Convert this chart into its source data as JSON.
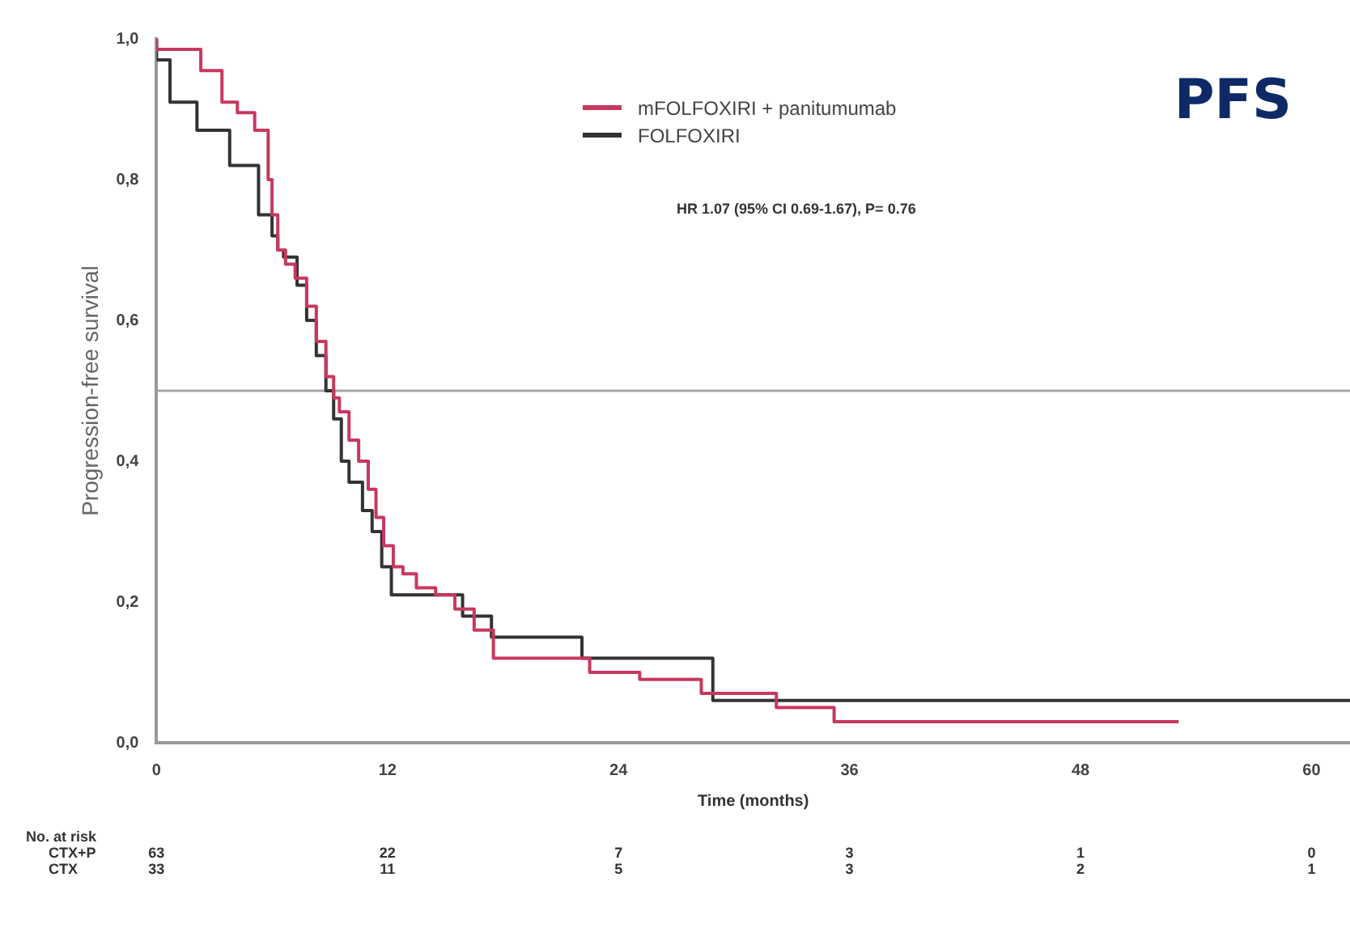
{
  "chart_data": {
    "type": "step",
    "title": "PFS",
    "xlabel": "Time (months)",
    "ylabel": "Progression-free survival",
    "xlim": [
      0,
      62
    ],
    "xticks": [
      0,
      12,
      24,
      36,
      48,
      60
    ],
    "ylim": [
      0,
      1
    ],
    "yticks": [
      {
        "value": 0,
        "label": "0,0"
      },
      {
        "value": 0.2,
        "label": "0,2"
      },
      {
        "value": 0.4,
        "label": "0,4"
      },
      {
        "value": 0.6,
        "label": "0,6"
      },
      {
        "value": 0.8,
        "label": "0,8"
      },
      {
        "value": 1,
        "label": "1,0"
      }
    ],
    "grid": false,
    "legend": "top",
    "marker": "none",
    "line_style": "solid",
    "ref_lines": [
      {
        "axis": "y",
        "value": 0.5,
        "color": "#a6a6a6"
      }
    ],
    "series": [
      {
        "name": "mFOLFOXIRI + panitumumab",
        "color": "#c8385e",
        "x": [
          0,
          2.3,
          3.4,
          4.2,
          5.1,
          5.8,
          6.0,
          6.3,
          6.7,
          7.2,
          7.8,
          8.3,
          8.8,
          9.2,
          9.5,
          10.0,
          10.5,
          11.0,
          11.4,
          11.8,
          12.3,
          12.8,
          13.5,
          14.5,
          15.5,
          16.5,
          17.5,
          22.5,
          25.1,
          28.3,
          32.2,
          35.2,
          43.9,
          53.1
        ],
        "values": [
          1,
          0.985,
          0.955,
          0.91,
          0.895,
          0.87,
          0.8,
          0.75,
          0.7,
          0.68,
          0.66,
          0.62,
          0.57,
          0.52,
          0.49,
          0.47,
          0.43,
          0.4,
          0.36,
          0.32,
          0.28,
          0.25,
          0.24,
          0.22,
          0.21,
          0.19,
          0.16,
          0.12,
          0.1,
          0.09,
          0.07,
          0.05,
          0.03,
          0.03
        ]
      },
      {
        "name": "FOLFOXIRI",
        "color": "#333333",
        "x": [
          0,
          0.7,
          2.1,
          3.8,
          5.3,
          6.0,
          6.3,
          6.6,
          7.3,
          7.8,
          8.3,
          8.8,
          9.2,
          9.6,
          10.0,
          10.7,
          11.2,
          11.7,
          12.2,
          15.9,
          17.4,
          22.1,
          28.9,
          51.6,
          62
        ],
        "values": [
          1,
          0.97,
          0.91,
          0.87,
          0.82,
          0.75,
          0.72,
          0.7,
          0.69,
          0.65,
          0.6,
          0.55,
          0.5,
          0.46,
          0.4,
          0.37,
          0.33,
          0.3,
          0.25,
          0.21,
          0.18,
          0.15,
          0.12,
          0.06,
          0.06
        ]
      }
    ],
    "annotations": [
      "HR 1.07 (95% CI 0.69-1.67), P= 0.76",
      "No. at risk",
      "CTX+P",
      "63",
      "22",
      "7",
      "3",
      "1",
      "0",
      "CTX",
      "33",
      "11",
      "5",
      "3",
      "2",
      "1"
    ]
  }
}
